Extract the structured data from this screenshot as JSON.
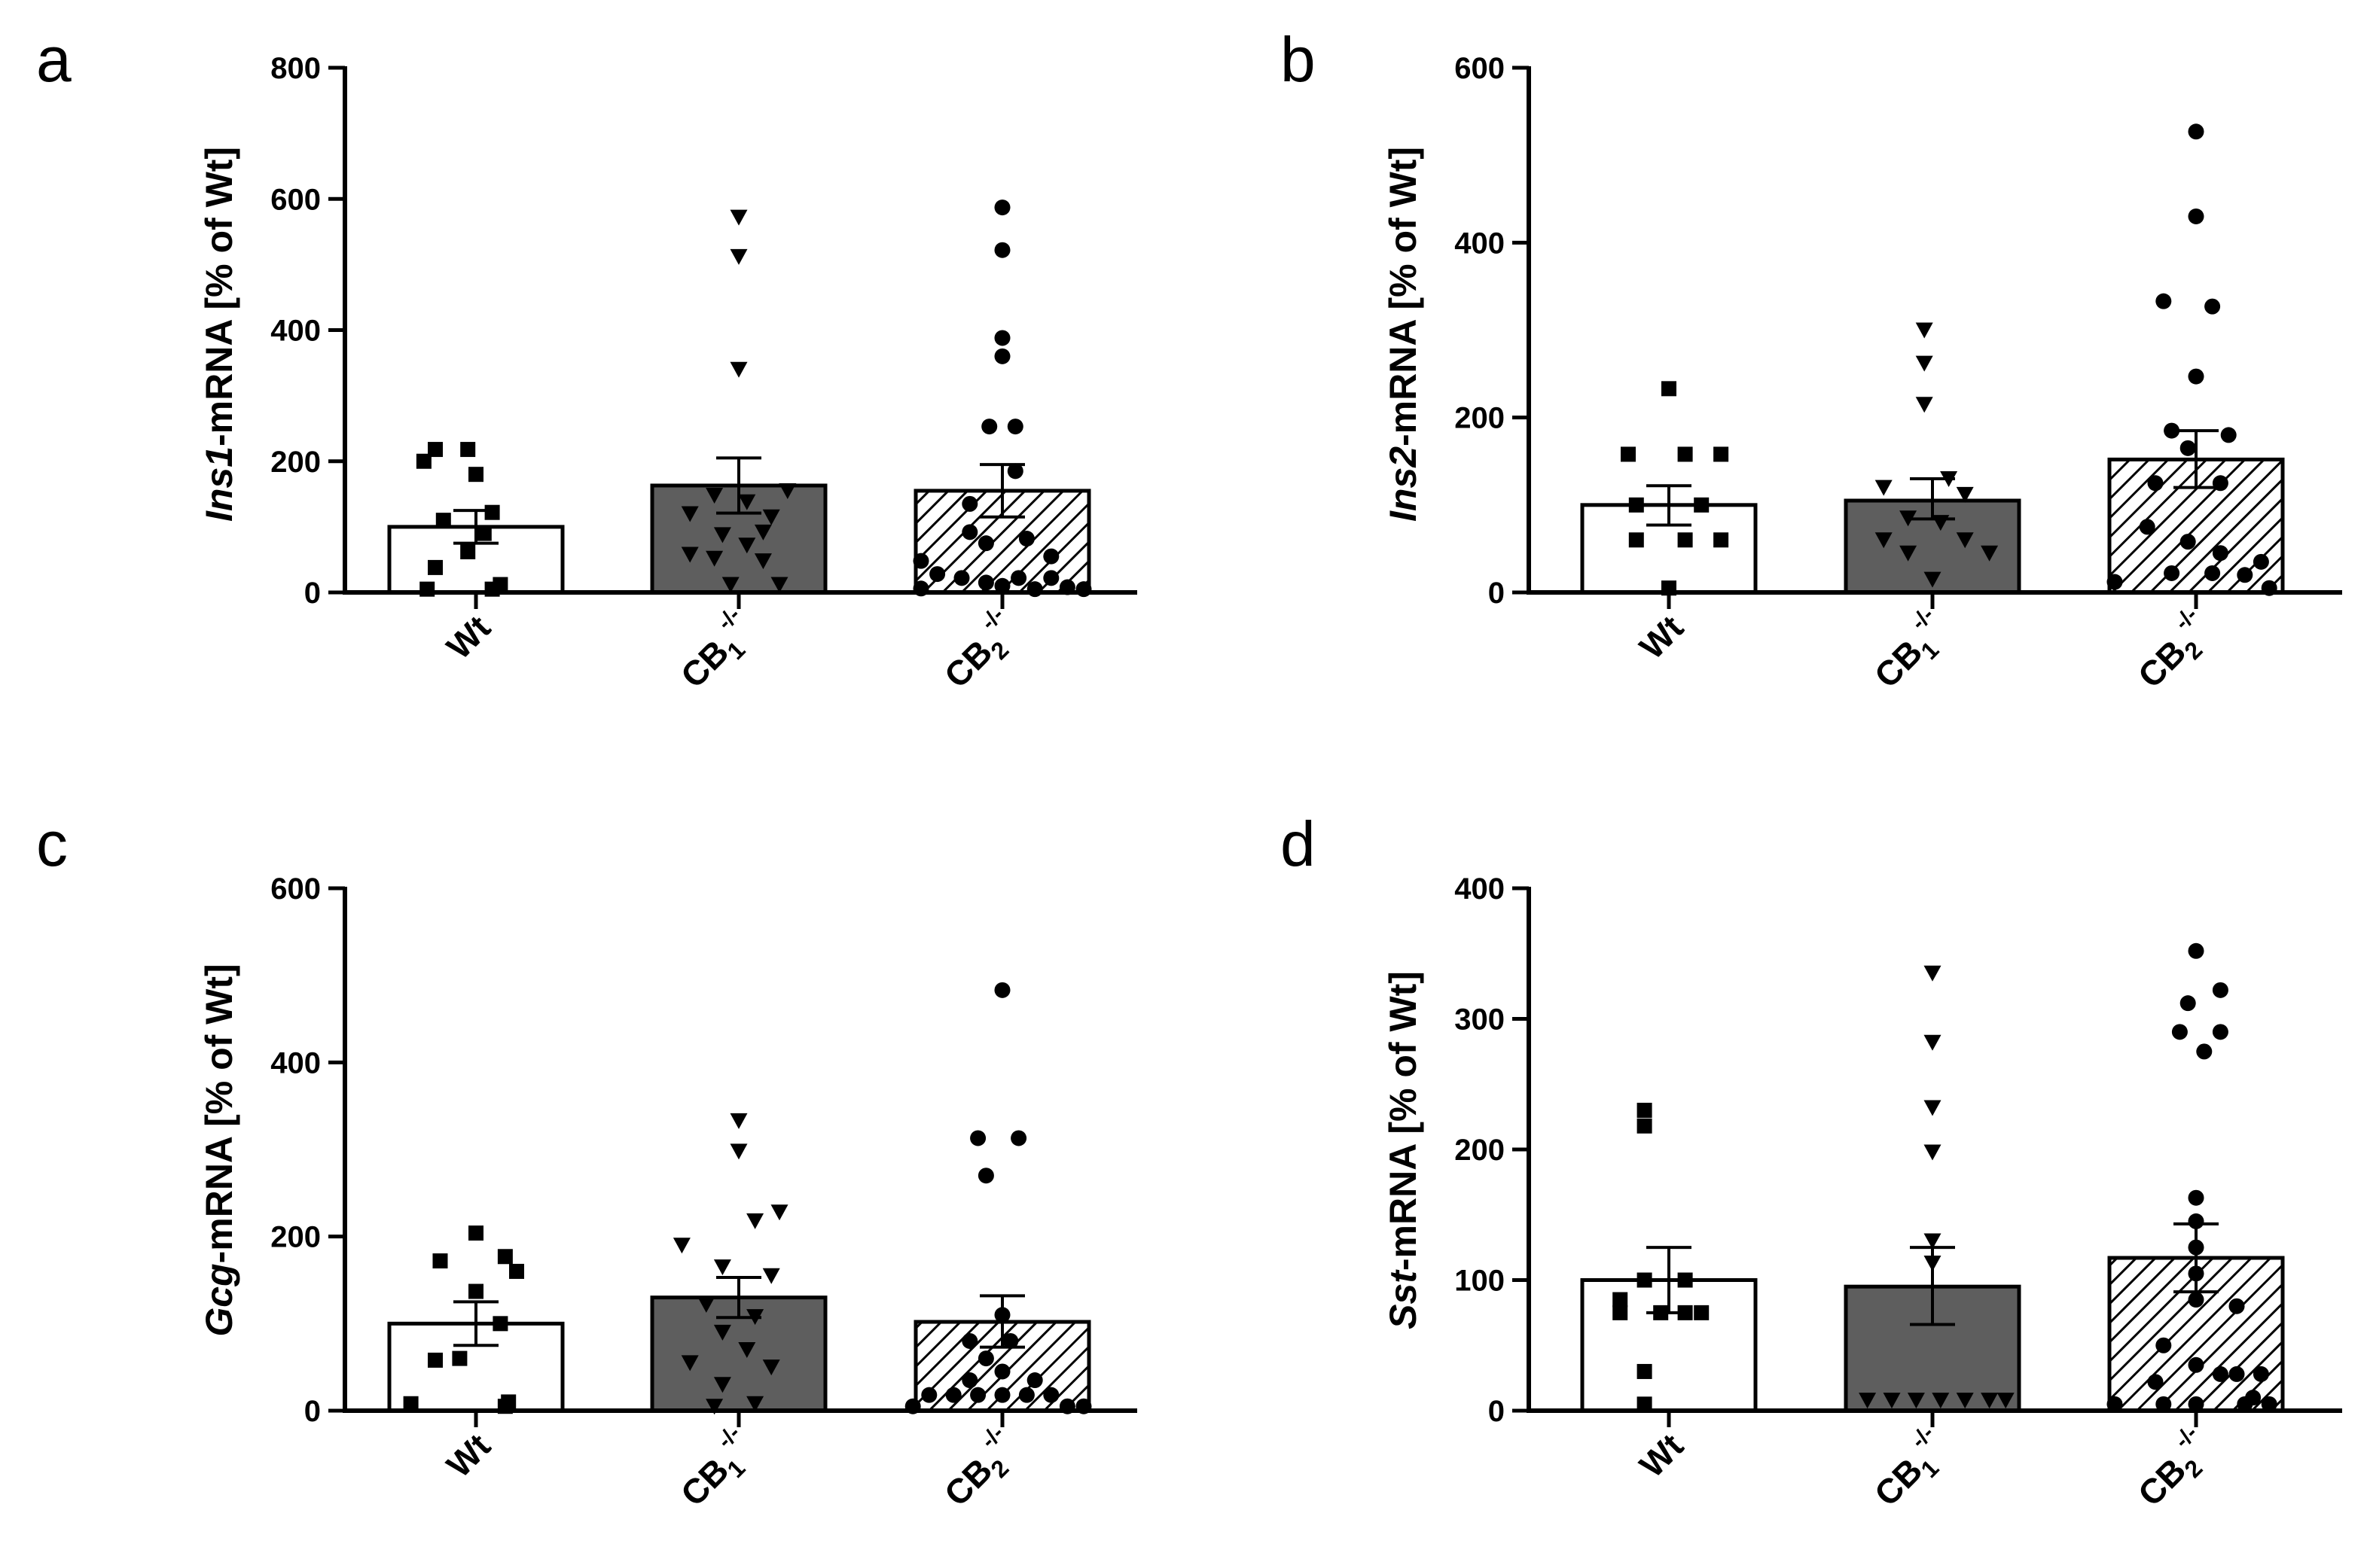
{
  "colors": {
    "wt_fill": "#ffffff",
    "cb1_fill": "#5e5e5e",
    "cb2_hatch": "#000000",
    "ink": "#000000"
  },
  "categories": [
    {
      "key": "wt",
      "main": "Wt",
      "sub": "",
      "sup": ""
    },
    {
      "key": "cb1",
      "main": "CB",
      "sub": "1",
      "sup": "-/-"
    },
    {
      "key": "cb2",
      "main": "CB",
      "sub": "2",
      "sup": "-/-"
    }
  ],
  "chart_data": [
    {
      "type": "bar",
      "panel": "a",
      "gene": "Ins1",
      "ylabel_suffix": "-mRNA [% of Wt]",
      "ylim": [
        0,
        800
      ],
      "yticks": [
        0,
        200,
        400,
        600,
        800
      ],
      "means": [
        100,
        163,
        155
      ],
      "error_upper": [
        125,
        205,
        195
      ],
      "error_lower": [
        75,
        121,
        115
      ],
      "markers": [
        "square",
        "triangle-down",
        "circle"
      ],
      "points": [
        [
          [
            -0.25,
            218
          ],
          [
            -0.05,
            218
          ],
          [
            -0.32,
            200
          ],
          [
            0.0,
            180
          ],
          [
            0.1,
            122
          ],
          [
            -0.2,
            110
          ],
          [
            0.05,
            90
          ],
          [
            -0.05,
            62
          ],
          [
            -0.25,
            38
          ],
          [
            0.15,
            12
          ],
          [
            -0.3,
            5
          ],
          [
            0.1,
            5
          ]
        ],
        [
          [
            0.0,
            572
          ],
          [
            0.0,
            512
          ],
          [
            0.0,
            340
          ],
          [
            0.3,
            155
          ],
          [
            -0.15,
            148
          ],
          [
            0.05,
            138
          ],
          [
            -0.3,
            120
          ],
          [
            0.2,
            115
          ],
          [
            0.15,
            92
          ],
          [
            -0.1,
            88
          ],
          [
            0.05,
            72
          ],
          [
            -0.3,
            58
          ],
          [
            -0.15,
            52
          ],
          [
            0.15,
            48
          ],
          [
            -0.05,
            12
          ],
          [
            0.25,
            12
          ]
        ],
        [
          [
            0.0,
            587
          ],
          [
            0.0,
            522
          ],
          [
            0.0,
            388
          ],
          [
            0.0,
            360
          ],
          [
            -0.08,
            253
          ],
          [
            0.08,
            253
          ],
          [
            0.08,
            185
          ],
          [
            -0.2,
            135
          ],
          [
            -0.2,
            92
          ],
          [
            0.15,
            82
          ],
          [
            -0.1,
            75
          ],
          [
            0.3,
            55
          ],
          [
            -0.5,
            48
          ],
          [
            -0.4,
            28
          ],
          [
            -0.25,
            22
          ],
          [
            0.1,
            22
          ],
          [
            0.3,
            22
          ],
          [
            -0.1,
            15
          ],
          [
            0.0,
            10
          ],
          [
            0.4,
            8
          ],
          [
            -0.5,
            6
          ],
          [
            0.2,
            5
          ],
          [
            0.5,
            5
          ]
        ]
      ]
    },
    {
      "type": "bar",
      "panel": "b",
      "gene": "Ins2",
      "ylabel_suffix": "-mRNA [% of Wt]",
      "ylim": [
        0,
        600
      ],
      "yticks": [
        0,
        200,
        400,
        600
      ],
      "means": [
        100,
        105,
        152
      ],
      "error_upper": [
        122,
        130,
        185
      ],
      "error_lower": [
        77,
        84,
        120
      ],
      "markers": [
        "square",
        "triangle-down",
        "circle"
      ],
      "points": [
        [
          [
            0.0,
            233
          ],
          [
            -0.25,
            158
          ],
          [
            0.1,
            158
          ],
          [
            0.32,
            158
          ],
          [
            -0.2,
            100
          ],
          [
            0.2,
            100
          ],
          [
            -0.2,
            60
          ],
          [
            0.1,
            60
          ],
          [
            0.32,
            60
          ],
          [
            0.0,
            5
          ]
        ],
        [
          [
            -0.05,
            300
          ],
          [
            -0.05,
            262
          ],
          [
            -0.05,
            215
          ],
          [
            0.1,
            130
          ],
          [
            -0.3,
            120
          ],
          [
            0.2,
            112
          ],
          [
            -0.15,
            85
          ],
          [
            0.05,
            80
          ],
          [
            -0.3,
            60
          ],
          [
            0.2,
            60
          ],
          [
            -0.15,
            45
          ],
          [
            0.35,
            45
          ],
          [
            0.0,
            15
          ]
        ],
        [
          [
            0.0,
            527
          ],
          [
            0.0,
            430
          ],
          [
            -0.2,
            333
          ],
          [
            0.1,
            327
          ],
          [
            0.0,
            247
          ],
          [
            -0.15,
            185
          ],
          [
            0.2,
            180
          ],
          [
            -0.05,
            165
          ],
          [
            -0.25,
            125
          ],
          [
            0.15,
            125
          ],
          [
            -0.3,
            75
          ],
          [
            -0.05,
            58
          ],
          [
            0.15,
            45
          ],
          [
            -0.15,
            22
          ],
          [
            0.1,
            22
          ],
          [
            0.4,
            35
          ],
          [
            -0.5,
            12
          ],
          [
            0.3,
            20
          ],
          [
            0.45,
            5
          ]
        ]
      ]
    },
    {
      "type": "bar",
      "panel": "c",
      "gene": "Gcg",
      "ylabel_suffix": "-mRNA [% of Wt]",
      "ylim": [
        0,
        600
      ],
      "yticks": [
        0,
        200,
        400,
        600
      ],
      "means": [
        100,
        130,
        102
      ],
      "error_upper": [
        125,
        153,
        132
      ],
      "error_lower": [
        75,
        107,
        73
      ],
      "markers": [
        "square",
        "triangle-down",
        "circle"
      ],
      "points": [
        [
          [
            0.0,
            204
          ],
          [
            0.18,
            177
          ],
          [
            -0.22,
            172
          ],
          [
            0.25,
            160
          ],
          [
            0.0,
            137
          ],
          [
            0.15,
            100
          ],
          [
            -0.25,
            58
          ],
          [
            -0.1,
            60
          ],
          [
            0.2,
            10
          ],
          [
            -0.4,
            8
          ],
          [
            0.18,
            5
          ]
        ],
        [
          [
            0.0,
            333
          ],
          [
            0.0,
            298
          ],
          [
            0.25,
            228
          ],
          [
            0.1,
            218
          ],
          [
            -0.35,
            190
          ],
          [
            -0.1,
            165
          ],
          [
            0.2,
            155
          ],
          [
            -0.2,
            122
          ],
          [
            0.1,
            108
          ],
          [
            -0.1,
            90
          ],
          [
            0.05,
            70
          ],
          [
            -0.3,
            55
          ],
          [
            0.2,
            50
          ],
          [
            -0.1,
            30
          ],
          [
            0.1,
            8
          ],
          [
            -0.15,
            5
          ]
        ],
        [
          [
            0.0,
            483
          ],
          [
            -0.15,
            313
          ],
          [
            0.1,
            313
          ],
          [
            -0.1,
            270
          ],
          [
            0.0,
            110
          ],
          [
            -0.2,
            80
          ],
          [
            0.05,
            80
          ],
          [
            -0.1,
            60
          ],
          [
            0.0,
            45
          ],
          [
            -0.2,
            35
          ],
          [
            0.2,
            35
          ],
          [
            -0.45,
            18
          ],
          [
            -0.3,
            18
          ],
          [
            -0.15,
            18
          ],
          [
            0.0,
            18
          ],
          [
            0.15,
            18
          ],
          [
            0.3,
            18
          ],
          [
            -0.55,
            5
          ],
          [
            0.5,
            5
          ],
          [
            0.4,
            5
          ]
        ]
      ]
    },
    {
      "type": "bar",
      "panel": "d",
      "gene": "Sst",
      "ylabel_suffix": "-mRNA [% of Wt]",
      "ylim": [
        0,
        400
      ],
      "yticks": [
        0,
        100,
        200,
        300,
        400
      ],
      "means": [
        100,
        95,
        117
      ],
      "error_upper": [
        125,
        125,
        143
      ],
      "error_lower": [
        75,
        66,
        91
      ],
      "markers": [
        "square",
        "triangle-down",
        "circle"
      ],
      "points": [
        [
          [
            -0.15,
            230
          ],
          [
            -0.15,
            218
          ],
          [
            -0.15,
            100
          ],
          [
            0.1,
            100
          ],
          [
            -0.3,
            85
          ],
          [
            0.2,
            75
          ],
          [
            -0.3,
            75
          ],
          [
            -0.05,
            75
          ],
          [
            0.1,
            75
          ],
          [
            -0.15,
            30
          ],
          [
            -0.15,
            5
          ]
        ],
        [
          [
            0.0,
            335
          ],
          [
            0.0,
            282
          ],
          [
            0.0,
            232
          ],
          [
            0.0,
            198
          ],
          [
            0.0,
            130
          ],
          [
            0.0,
            113
          ],
          [
            -0.4,
            8
          ],
          [
            -0.25,
            8
          ],
          [
            -0.1,
            8
          ],
          [
            0.05,
            8
          ],
          [
            0.2,
            8
          ],
          [
            0.35,
            8
          ],
          [
            0.45,
            8
          ]
        ],
        [
          [
            0.0,
            352
          ],
          [
            0.15,
            322
          ],
          [
            -0.05,
            312
          ],
          [
            -0.1,
            290
          ],
          [
            0.15,
            290
          ],
          [
            0.05,
            275
          ],
          [
            0.0,
            163
          ],
          [
            0.0,
            145
          ],
          [
            0.0,
            125
          ],
          [
            0.0,
            105
          ],
          [
            0.0,
            85
          ],
          [
            0.25,
            80
          ],
          [
            -0.2,
            50
          ],
          [
            0.0,
            35
          ],
          [
            -0.25,
            22
          ],
          [
            0.25,
            28
          ],
          [
            0.15,
            28
          ],
          [
            0.4,
            28
          ],
          [
            -0.5,
            5
          ],
          [
            -0.2,
            5
          ],
          [
            0.0,
            5
          ],
          [
            0.45,
            5
          ],
          [
            0.35,
            10
          ],
          [
            0.3,
            5
          ]
        ]
      ]
    }
  ]
}
